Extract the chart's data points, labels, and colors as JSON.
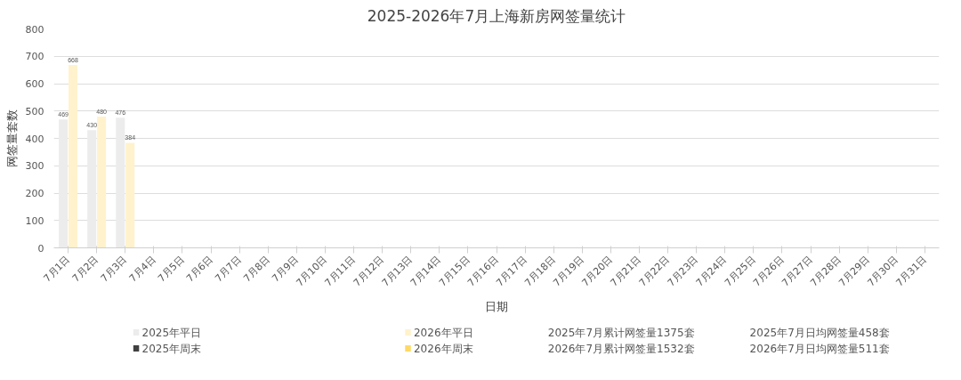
{
  "chart_data": {
    "type": "bar",
    "title": "2025-2026年7月上海新房网签量统计",
    "xlabel": "日期",
    "ylabel": "网签量套数",
    "categories": [
      "7月1日",
      "7月2日",
      "7月3日",
      "7月4日",
      "7月5日",
      "7月6日",
      "7月7日",
      "7月8日",
      "7月9日",
      "7月10日",
      "7月11日",
      "7月12日",
      "7月13日",
      "7月14日",
      "7月15日",
      "7月16日",
      "7月17日",
      "7月18日",
      "7月19日",
      "7月20日",
      "7月21日",
      "7月22日",
      "7月23日",
      "7月24日",
      "7月25日",
      "7月26日",
      "7月27日",
      "7月28日",
      "7月29日",
      "7月30日",
      "7月31日"
    ],
    "series": [
      {
        "name": "2025年平日",
        "color": "#ececec",
        "values": [
          469,
          430,
          476,
          null,
          null,
          null,
          null,
          null,
          null,
          null,
          null,
          null,
          null,
          null,
          null,
          null,
          null,
          null,
          null,
          null,
          null,
          null,
          null,
          null,
          null,
          null,
          null,
          null,
          null,
          null,
          null
        ]
      },
      {
        "name": "2025年周末",
        "color": "#404040",
        "values": [
          null,
          null,
          null,
          null,
          null,
          null,
          null,
          null,
          null,
          null,
          null,
          null,
          null,
          null,
          null,
          null,
          null,
          null,
          null,
          null,
          null,
          null,
          null,
          null,
          null,
          null,
          null,
          null,
          null,
          null,
          null
        ]
      },
      {
        "name": "2026年平日",
        "color": "#fff2cc",
        "values": [
          668,
          480,
          384,
          null,
          null,
          null,
          null,
          null,
          null,
          null,
          null,
          null,
          null,
          null,
          null,
          null,
          null,
          null,
          null,
          null,
          null,
          null,
          null,
          null,
          null,
          null,
          null,
          null,
          null,
          null,
          null
        ]
      },
      {
        "name": "2026年周末",
        "color": "#ffd966",
        "values": [
          null,
          null,
          null,
          null,
          null,
          null,
          null,
          null,
          null,
          null,
          null,
          null,
          null,
          null,
          null,
          null,
          null,
          null,
          null,
          null,
          null,
          null,
          null,
          null,
          null,
          null,
          null,
          null,
          null,
          null,
          null
        ]
      }
    ],
    "ylim": [
      0,
      800
    ],
    "yticks": [
      0,
      100,
      200,
      300,
      400,
      500,
      600,
      700,
      800
    ],
    "grid": "y",
    "data_labels": true,
    "legend": "bottom",
    "annotations": [
      "2025年7月累计网签量1375套",
      "2026年7月累计网签量1532套",
      "2025年7月日均网签量458套",
      "2026年7月日均网签量511套"
    ]
  }
}
